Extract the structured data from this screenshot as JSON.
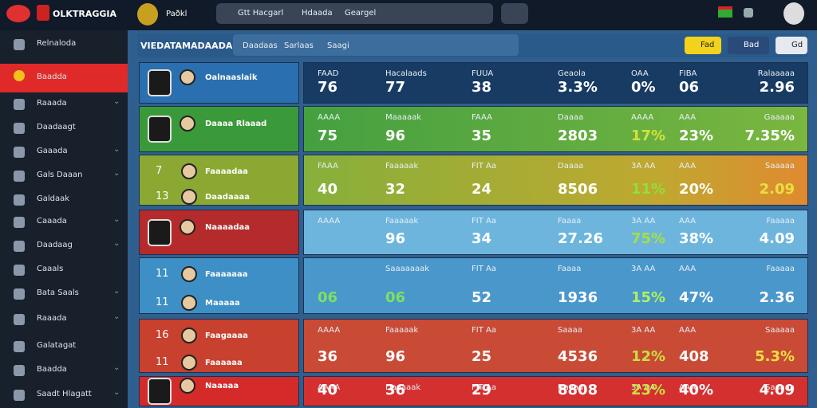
{
  "topbar": {
    "brand": "OLKTRAGGIA",
    "club": "Paðkl",
    "search": [
      "Gtt Hacgarl",
      "Hdaada",
      "Geargel"
    ]
  },
  "sidebar": [
    "Relnaloda",
    "Baadda",
    "Raaada",
    "Daadaagt",
    "Gaaada",
    "Gals Daaan",
    "Galdaak",
    "Caaada",
    "Daadaag",
    "Caaals",
    "Bata Saals",
    "Raaada",
    "Galatagat",
    "Baadda",
    "Saadt Hlagatt"
  ],
  "header": {
    "title": "VIEDATAMADAADA",
    "tabs": [
      "Daadaas",
      "Sarlaas",
      "Saagi"
    ],
    "buttons": [
      "Fad",
      "Bad",
      "Gd"
    ]
  },
  "rows": [
    {
      "players": [
        {
          "number": null,
          "name": "Oalnaaslaik"
        }
      ],
      "cells": [
        {
          "label": "FAAD",
          "value": "76"
        },
        {
          "label": "Hacalaads",
          "value": "77"
        },
        {
          "label": "FUUA",
          "value": "38"
        },
        {
          "label": "Geaola",
          "value": "3.3%"
        },
        {
          "label": "OAA",
          "value": "0%"
        },
        {
          "label": "FIBA",
          "value": "06"
        },
        {
          "label": "Ralaaaaa",
          "value": "2.96"
        }
      ]
    },
    {
      "players": [
        {
          "number": null,
          "name": "Daaaa Rlaaad"
        }
      ],
      "cells": [
        {
          "label": "AAAA",
          "value": "75"
        },
        {
          "label": "Maaaaak",
          "value": "96"
        },
        {
          "label": "FAAA",
          "value": "35"
        },
        {
          "label": "Daaaa",
          "value": "2803"
        },
        {
          "label": "AAAA",
          "value": "17%",
          "color": "#d4e23a"
        },
        {
          "label": "AAA",
          "value": "23%"
        },
        {
          "label": "Gaaaaa",
          "value": "7.35%"
        }
      ]
    },
    {
      "players": [
        {
          "number": "7",
          "name": "Faaaadaa"
        },
        {
          "number": "13",
          "name": "Daadaaaa"
        }
      ],
      "cells": [
        {
          "label": "FAAA",
          "value": "40"
        },
        {
          "label": "Faaaaak",
          "value": "32"
        },
        {
          "label": "FIT Aa",
          "value": "24"
        },
        {
          "label": "Daaaa",
          "value": "8506"
        },
        {
          "label": "3A AA",
          "value": "11%",
          "color": "#8ee03a"
        },
        {
          "label": "AAA",
          "value": "20%"
        },
        {
          "label": "Saaaaa",
          "value": "2.09",
          "color": "#e8e040"
        }
      ]
    },
    {
      "players": [
        {
          "number": null,
          "name": "Naaaadaa"
        }
      ],
      "cells": [
        {
          "label": "AAAA",
          "value": ""
        },
        {
          "label": "Faaaaak",
          "value": "96"
        },
        {
          "label": "FIT Aa",
          "value": "34"
        },
        {
          "label": "Faaaa",
          "value": "27.26"
        },
        {
          "label": "3A AA",
          "value": "75%",
          "color": "#a6e040"
        },
        {
          "label": "AAA",
          "value": "38%"
        },
        {
          "label": "Faaaaa",
          "value": "4.09"
        }
      ]
    },
    {
      "players": [
        {
          "number": "11",
          "name": "Faaaaaaa"
        },
        {
          "number": "11",
          "name": "Maaaaa"
        }
      ],
      "cells": [
        {
          "label": "",
          "value": "06",
          "color": "#7ee060"
        },
        {
          "label": "Saaaaaaak",
          "value": "06",
          "color": "#7ee060"
        },
        {
          "label": "FIT Aa",
          "value": "52"
        },
        {
          "label": "Faaaa",
          "value": "1936"
        },
        {
          "label": "3A AA",
          "value": "15%",
          "color": "#b0f060"
        },
        {
          "label": "AAA",
          "value": "47%"
        },
        {
          "label": "Faaaaa",
          "value": "2.36"
        }
      ]
    },
    {
      "players": [
        {
          "number": "16",
          "name": "Faagaaaa"
        },
        {
          "number": "11",
          "name": "Faaaaaa"
        }
      ],
      "cells": [
        {
          "label": "AAAA",
          "value": "36"
        },
        {
          "label": "Faaaaak",
          "value": "96"
        },
        {
          "label": "FIT Aa",
          "value": "25"
        },
        {
          "label": "Saaaa",
          "value": "4536"
        },
        {
          "label": "3A AA",
          "value": "12%",
          "color": "#c8e040"
        },
        {
          "label": "AAA",
          "value": "408"
        },
        {
          "label": "Saaaaa",
          "value": "5.3%",
          "color": "#f0e040"
        }
      ]
    },
    {
      "players": [
        {
          "number": null,
          "name": "Naaaaa"
        }
      ],
      "cells": [
        {
          "label": "AAAA",
          "value": "40"
        },
        {
          "label": "Daaaaak",
          "value": "36"
        },
        {
          "label": "FIT Aa",
          "value": "29"
        },
        {
          "label": "Daaaa",
          "value": "8808"
        },
        {
          "label": "3A AA",
          "value": "23%",
          "color": "#c8e040"
        },
        {
          "label": "AAA",
          "value": "40%"
        },
        {
          "label": "Saaaaa",
          "value": "4.09"
        }
      ]
    }
  ]
}
